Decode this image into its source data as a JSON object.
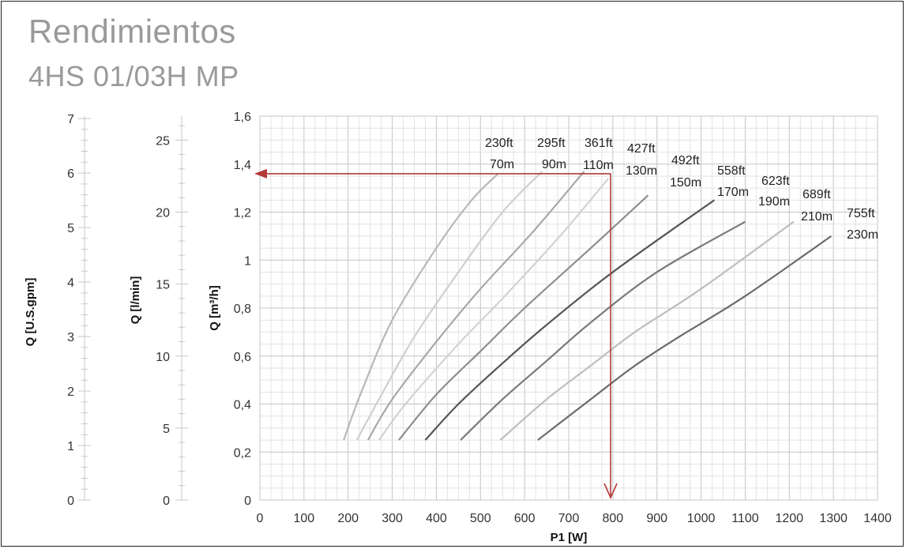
{
  "chart_data": {
    "type": "line",
    "title": "Rendimientos",
    "subtitle": "4HS 01/03H MP",
    "xlabel": "P1 [W]",
    "ylabel": "Q [m³/h]",
    "ylabel_lmin": "Q [l/min]",
    "ylabel_gpm": "Q [U.S.gpm]",
    "xlim": [
      0,
      1400
    ],
    "ylim": [
      0,
      1.6
    ],
    "ylim_lmin": [
      0,
      26.667
    ],
    "ylim_gpm": [
      0,
      7.045
    ],
    "x_ticks": [
      "0",
      "100",
      "200",
      "300",
      "400",
      "500",
      "600",
      "700",
      "800",
      "900",
      "1000",
      "1100",
      "1200",
      "1300",
      "1400"
    ],
    "y_ticks": [
      "0",
      "0,2",
      "0,4",
      "0,6",
      "0,8",
      "1",
      "1,2",
      "1,4",
      "1,6"
    ],
    "lmin_ticks": [
      "0",
      "5",
      "10",
      "15",
      "20",
      "25"
    ],
    "gpm_ticks": [
      "0",
      "1",
      "2",
      "3",
      "4",
      "5",
      "6",
      "7"
    ],
    "grid": true,
    "series": [
      {
        "name": "230ft 70m",
        "label_ft": "230ft",
        "label_m": "70m",
        "color": "#b8b8b8",
        "x": [
          190,
          230,
          300,
          400,
          480,
          540
        ],
        "y": [
          0.25,
          0.45,
          0.75,
          1.05,
          1.25,
          1.36
        ]
      },
      {
        "name": "295ft 90m",
        "label_ft": "295ft",
        "label_m": "90m",
        "color": "#cfcfcf",
        "x": [
          220,
          270,
          350,
          450,
          550,
          640
        ],
        "y": [
          0.25,
          0.42,
          0.68,
          0.95,
          1.2,
          1.37
        ]
      },
      {
        "name": "361ft 110m",
        "label_ft": "361ft",
        "label_m": "110m",
        "color": "#a8a8a8",
        "x": [
          245,
          300,
          400,
          500,
          620,
          735
        ],
        "y": [
          0.25,
          0.42,
          0.66,
          0.88,
          1.12,
          1.37
        ]
      },
      {
        "name": "427ft 130m",
        "label_ft": "427ft",
        "label_m": "130m",
        "color": "#d2d2d2",
        "x": [
          270,
          330,
          450,
          550,
          680,
          790
        ],
        "y": [
          0.25,
          0.4,
          0.65,
          0.84,
          1.1,
          1.34
        ]
      },
      {
        "name": "492ft 150m",
        "label_ft": "492ft",
        "label_m": "150m",
        "color": "#8e8e8e",
        "x": [
          315,
          400,
          500,
          600,
          750,
          880
        ],
        "y": [
          0.25,
          0.44,
          0.62,
          0.8,
          1.05,
          1.27
        ]
      },
      {
        "name": "558ft 170m",
        "label_ft": "558ft",
        "label_m": "170m",
        "color": "#555555",
        "x": [
          375,
          450,
          550,
          650,
          800,
          1030
        ],
        "y": [
          0.25,
          0.4,
          0.57,
          0.73,
          0.95,
          1.25
        ]
      },
      {
        "name": "623ft 190m",
        "label_ft": "623ft",
        "label_m": "190m",
        "color": "#7a7a7a",
        "x": [
          455,
          550,
          650,
          750,
          900,
          1100
        ],
        "y": [
          0.25,
          0.42,
          0.58,
          0.74,
          0.95,
          1.16
        ]
      },
      {
        "name": "689ft 210m",
        "label_ft": "689ft",
        "label_m": "210m",
        "color": "#bdbdbd",
        "x": [
          545,
          650,
          750,
          850,
          1000,
          1210
        ],
        "y": [
          0.25,
          0.42,
          0.56,
          0.7,
          0.88,
          1.16
        ]
      },
      {
        "name": "755ft 230m",
        "label_ft": "755ft",
        "label_m": "230m",
        "color": "#6a6a6a",
        "x": [
          630,
          750,
          850,
          950,
          1100,
          1295
        ],
        "y": [
          0.25,
          0.42,
          0.56,
          0.68,
          0.85,
          1.1
        ]
      }
    ],
    "annotation": {
      "x": 795,
      "y": 1.36,
      "color": "#b33a3a"
    }
  }
}
